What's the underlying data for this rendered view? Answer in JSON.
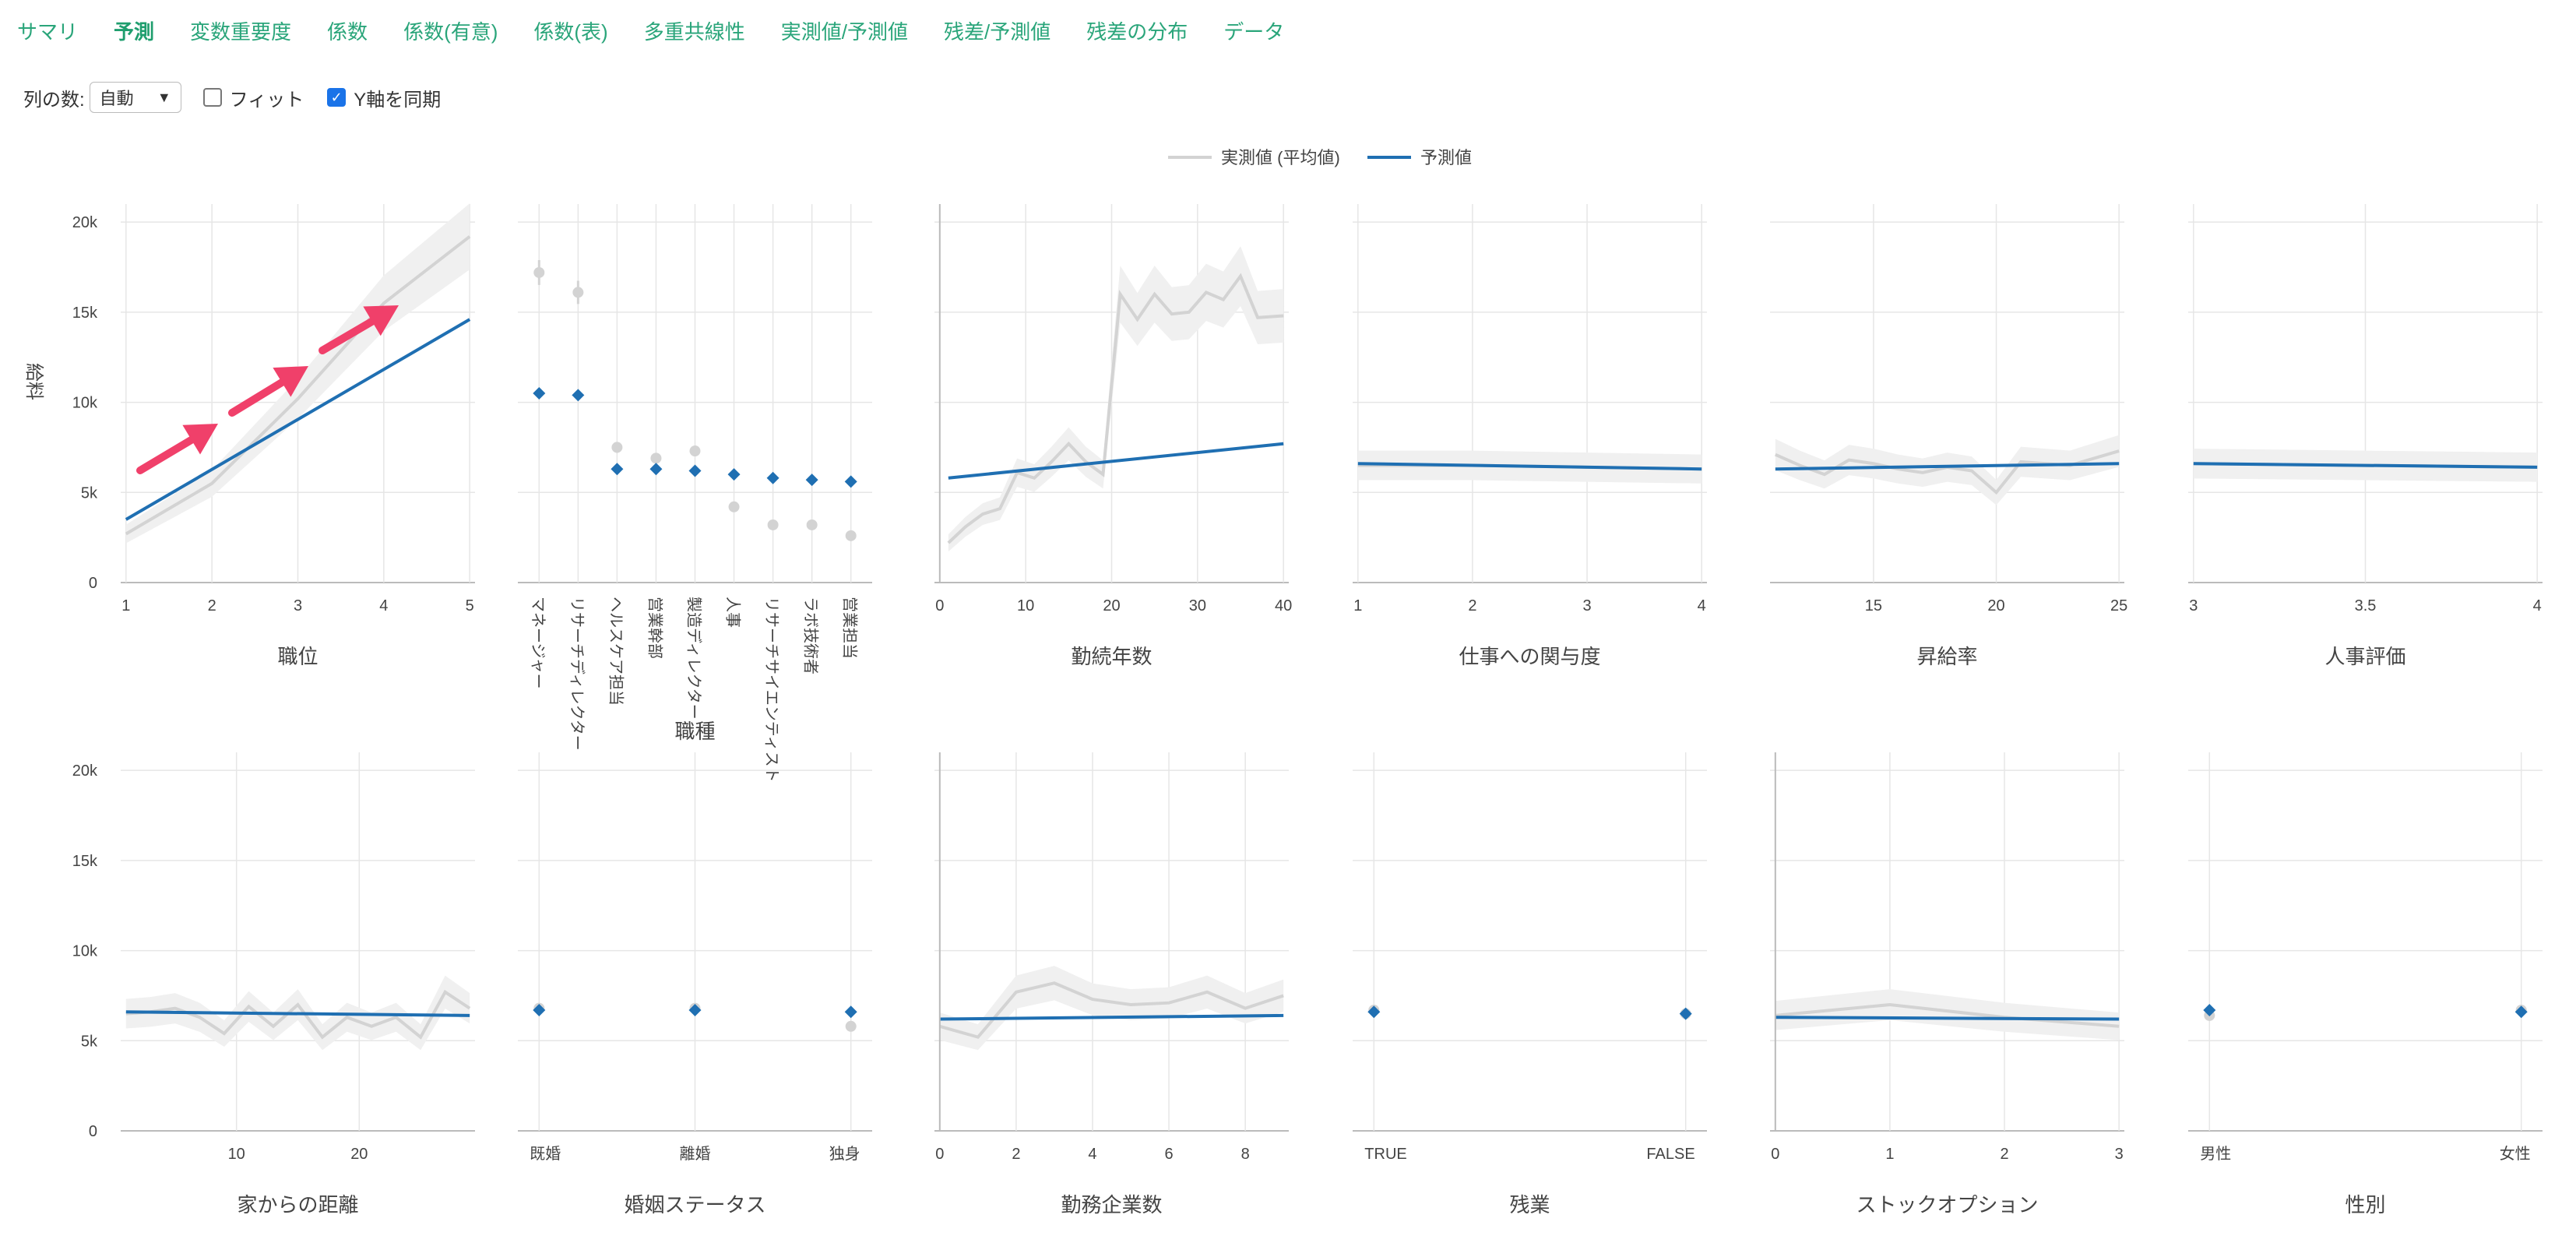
{
  "tabs": [
    "サマリ",
    "予測",
    "変数重要度",
    "係数",
    "係数(有意)",
    "係数(表)",
    "多重共線性",
    "実測値/予測値",
    "残差/予測値",
    "残差の分布",
    "データ"
  ],
  "active_tab": "予測",
  "controls": {
    "columns_label": "列の数:",
    "columns_value": "自動",
    "fit_label": "フィット",
    "fit_checked": false,
    "sync_y_label": "Y軸を同期",
    "sync_y_checked": true
  },
  "legend": {
    "actual": "実測値 (平均値)",
    "predicted": "予測値"
  },
  "colors": {
    "actual": "#d3d3d3",
    "predicted": "#1f6fb2",
    "band": "#f0f0f0",
    "grid": "#e6e6e6",
    "arrow": "#f0406a"
  },
  "y_axis": {
    "label": "給料",
    "ticks": [
      "0",
      "5k",
      "10k",
      "15k",
      "20k"
    ],
    "values": [
      0,
      5000,
      10000,
      15000,
      20000
    ]
  },
  "chart_data": [
    {
      "type": "line",
      "xlabel": "職位",
      "x": [
        1,
        2,
        3,
        4,
        5
      ],
      "xticks": [
        1,
        2,
        3,
        4,
        5
      ],
      "actual": [
        2700,
        5500,
        10200,
        15500,
        19200
      ],
      "predicted": [
        3500,
        14600
      ],
      "note_arrows": 3
    },
    {
      "type": "scatter",
      "xlabel": "職種",
      "categories": [
        "マネージャー",
        "リサーチディレクター",
        "ヘルスケア担当",
        "営業幹部",
        "製造ディレクター",
        "人事",
        "リサーチサイエンティスト",
        "ラボ技術者",
        "営業担当"
      ],
      "actual": [
        17200,
        16100,
        7500,
        6900,
        7300,
        4200,
        3200,
        3200,
        2600
      ],
      "predicted": [
        10500,
        10400,
        6300,
        6300,
        6200,
        6000,
        5800,
        5700,
        5600
      ]
    },
    {
      "type": "line",
      "xlabel": "勤続年数",
      "xticks": [
        0,
        10,
        20,
        30,
        40
      ],
      "x": [
        1,
        3,
        5,
        7,
        9,
        11,
        13,
        15,
        17,
        19,
        21,
        23,
        25,
        27,
        29,
        31,
        33,
        35,
        37,
        40
      ],
      "actual": [
        2200,
        3100,
        3800,
        4100,
        6100,
        5800,
        6700,
        7700,
        6700,
        6000,
        16000,
        14600,
        16000,
        14900,
        15000,
        16100,
        15700,
        17000,
        14700,
        14800
      ],
      "predicted": [
        5800,
        7700
      ]
    },
    {
      "type": "line",
      "xlabel": "仕事への関与度",
      "xticks": [
        1,
        2,
        3,
        4
      ],
      "x": [
        1,
        2,
        3,
        4
      ],
      "actual": [
        6500,
        6500,
        6400,
        6300
      ],
      "predicted": [
        6600,
        6300
      ]
    },
    {
      "type": "line",
      "xlabel": "昇給率",
      "xticks": [
        15,
        20,
        25
      ],
      "x": [
        11,
        12,
        13,
        14,
        15,
        16,
        17,
        18,
        19,
        20,
        21,
        22,
        23,
        24,
        25
      ],
      "actual": [
        7100,
        6500,
        6000,
        6800,
        6600,
        6300,
        6100,
        6400,
        6200,
        5000,
        6700,
        6600,
        6500,
        6900,
        7300
      ],
      "predicted": [
        6300,
        6600
      ]
    },
    {
      "type": "line",
      "xlabel": "人事評価",
      "xticks": [
        3,
        3.5,
        4
      ],
      "x": [
        3,
        4
      ],
      "actual": [
        6600,
        6400
      ],
      "predicted": [
        6600,
        6400
      ]
    },
    {
      "type": "line",
      "xlabel": "家からの距離",
      "xticks": [
        10,
        20
      ],
      "x": [
        1,
        3,
        5,
        7,
        9,
        11,
        13,
        15,
        17,
        19,
        21,
        23,
        25,
        27,
        29
      ],
      "actual": [
        6500,
        6600,
        6800,
        6300,
        5400,
        6900,
        5800,
        7000,
        5200,
        6300,
        5800,
        6300,
        5200,
        7700,
        6800
      ],
      "predicted": [
        6600,
        6400
      ]
    },
    {
      "type": "scatter",
      "xlabel": "婚姻ステータス",
      "categories": [
        "既婚",
        "離婚",
        "独身"
      ],
      "actual": [
        6800,
        6800,
        5800
      ],
      "predicted": [
        6700,
        6700,
        6600
      ]
    },
    {
      "type": "line",
      "xlabel": "勤務企業数",
      "xticks": [
        0,
        2,
        4,
        6,
        8
      ],
      "x": [
        0,
        1,
        2,
        3,
        4,
        5,
        6,
        7,
        8,
        9
      ],
      "actual": [
        5800,
        5200,
        7700,
        8200,
        7300,
        7000,
        7100,
        7700,
        6800,
        7500
      ],
      "predicted": [
        6200,
        6400
      ]
    },
    {
      "type": "scatter",
      "xlabel": "残業",
      "categories": [
        "TRUE",
        "FALSE"
      ],
      "actual": [
        6700,
        6500
      ],
      "predicted": [
        6600,
        6500
      ]
    },
    {
      "type": "line",
      "xlabel": "ストックオプション",
      "xticks": [
        0,
        1,
        2,
        3
      ],
      "x": [
        0,
        1,
        2,
        3
      ],
      "actual": [
        6400,
        7000,
        6300,
        5800
      ],
      "predicted": [
        6300,
        6200
      ]
    },
    {
      "type": "scatter",
      "xlabel": "性別",
      "categories": [
        "男性",
        "女性"
      ],
      "actual": [
        6400,
        6700
      ],
      "predicted": [
        6700,
        6600
      ]
    }
  ]
}
